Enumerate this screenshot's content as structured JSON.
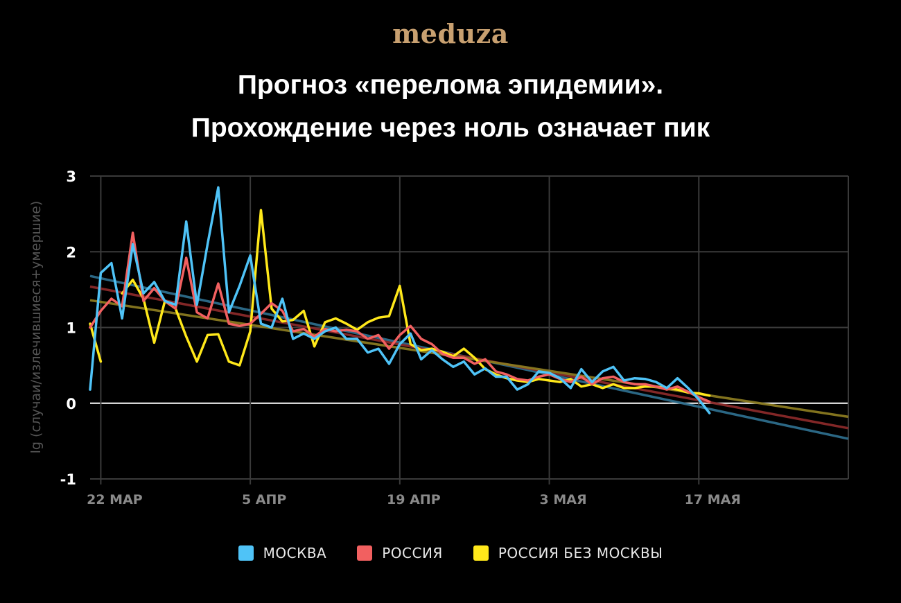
{
  "logo": "meduza",
  "title_lines": [
    "Прогноз «перелома эпидемии».",
    "Прохождение через ноль означает пик"
  ],
  "chart_data": {
    "type": "line",
    "title": "Прогноз «перелома эпидемии». Прохождение через ноль означает пик",
    "ylabel": "lg (случаи/излечившиеся+умершие)",
    "xlabel": "",
    "ylim": [
      -1,
      3
    ],
    "xlim": [
      "2020-03-21",
      "2020-05-31"
    ],
    "yticks": [
      3,
      2,
      1,
      0,
      -1
    ],
    "xticks": [
      {
        "date": "2020-03-22",
        "label": "22 МАР"
      },
      {
        "date": "2020-04-05",
        "label": "5 АПР"
      },
      {
        "date": "2020-04-19",
        "label": "19 АПР"
      },
      {
        "date": "2020-05-03",
        "label": "3 МАЯ"
      },
      {
        "date": "2020-05-17",
        "label": "17 МАЯ"
      }
    ],
    "grid": true,
    "legend_position": "bottom",
    "series": [
      {
        "name": "МОСКВА",
        "color": "#4fc3f7",
        "points": [
          [
            "2020-03-21",
            0.18
          ],
          [
            "2020-03-22",
            1.72
          ],
          [
            "2020-03-23",
            1.85
          ],
          [
            "2020-03-24",
            1.12
          ],
          [
            "2020-03-25",
            2.1
          ],
          [
            "2020-03-26",
            1.45
          ],
          [
            "2020-03-27",
            1.6
          ],
          [
            "2020-03-28",
            1.35
          ],
          [
            "2020-03-29",
            1.3
          ],
          [
            "2020-03-30",
            2.4
          ],
          [
            "2020-03-31",
            1.3
          ],
          [
            "2020-04-01",
            2.1
          ],
          [
            "2020-04-02",
            2.85
          ],
          [
            "2020-04-03",
            1.2
          ],
          [
            "2020-04-04",
            1.55
          ],
          [
            "2020-04-05",
            1.95
          ],
          [
            "2020-04-06",
            1.05
          ],
          [
            "2020-04-07",
            1.0
          ],
          [
            "2020-04-08",
            1.38
          ],
          [
            "2020-04-09",
            0.85
          ],
          [
            "2020-04-10",
            0.92
          ],
          [
            "2020-04-11",
            0.85
          ],
          [
            "2020-04-12",
            0.95
          ],
          [
            "2020-04-13",
            1.0
          ],
          [
            "2020-04-14",
            0.85
          ],
          [
            "2020-04-15",
            0.85
          ],
          [
            "2020-04-16",
            0.67
          ],
          [
            "2020-04-17",
            0.72
          ],
          [
            "2020-04-18",
            0.52
          ],
          [
            "2020-04-19",
            0.78
          ],
          [
            "2020-04-20",
            0.92
          ],
          [
            "2020-04-21",
            0.58
          ],
          [
            "2020-04-22",
            0.7
          ],
          [
            "2020-04-23",
            0.58
          ],
          [
            "2020-04-24",
            0.48
          ],
          [
            "2020-04-25",
            0.55
          ],
          [
            "2020-04-26",
            0.38
          ],
          [
            "2020-04-27",
            0.46
          ],
          [
            "2020-04-28",
            0.35
          ],
          [
            "2020-04-29",
            0.35
          ],
          [
            "2020-04-30",
            0.18
          ],
          [
            "2020-05-01",
            0.25
          ],
          [
            "2020-05-02",
            0.42
          ],
          [
            "2020-05-03",
            0.4
          ],
          [
            "2020-05-04",
            0.33
          ],
          [
            "2020-05-05",
            0.2
          ],
          [
            "2020-05-06",
            0.45
          ],
          [
            "2020-05-07",
            0.28
          ],
          [
            "2020-05-08",
            0.42
          ],
          [
            "2020-05-09",
            0.48
          ],
          [
            "2020-05-10",
            0.3
          ],
          [
            "2020-05-11",
            0.33
          ],
          [
            "2020-05-12",
            0.32
          ],
          [
            "2020-05-13",
            0.28
          ],
          [
            "2020-05-14",
            0.2
          ],
          [
            "2020-05-15",
            0.33
          ],
          [
            "2020-05-16",
            0.2
          ],
          [
            "2020-05-17",
            0.05
          ],
          [
            "2020-05-18",
            -0.13
          ]
        ],
        "trend": [
          [
            "2020-03-21",
            1.68
          ],
          [
            "2020-05-31",
            -0.47
          ]
        ]
      },
      {
        "name": "РОССИЯ",
        "color": "#f26060",
        "points": [
          [
            "2020-03-21",
            1.0
          ],
          [
            "2020-03-22",
            1.22
          ],
          [
            "2020-03-23",
            1.38
          ],
          [
            "2020-03-24",
            1.28
          ],
          [
            "2020-03-25",
            2.25
          ],
          [
            "2020-03-26",
            1.35
          ],
          [
            "2020-03-27",
            1.52
          ],
          [
            "2020-03-28",
            1.35
          ],
          [
            "2020-03-29",
            1.25
          ],
          [
            "2020-03-30",
            1.92
          ],
          [
            "2020-03-31",
            1.2
          ],
          [
            "2020-04-01",
            1.12
          ],
          [
            "2020-04-02",
            1.58
          ],
          [
            "2020-04-03",
            1.05
          ],
          [
            "2020-04-04",
            1.02
          ],
          [
            "2020-04-05",
            1.05
          ],
          [
            "2020-04-06",
            1.18
          ],
          [
            "2020-04-07",
            1.32
          ],
          [
            "2020-04-08",
            1.22
          ],
          [
            "2020-04-09",
            0.95
          ],
          [
            "2020-04-10",
            0.98
          ],
          [
            "2020-04-11",
            0.88
          ],
          [
            "2020-04-12",
            0.98
          ],
          [
            "2020-04-13",
            0.95
          ],
          [
            "2020-04-14",
            0.97
          ],
          [
            "2020-04-15",
            0.95
          ],
          [
            "2020-04-16",
            0.85
          ],
          [
            "2020-04-17",
            0.9
          ],
          [
            "2020-04-18",
            0.72
          ],
          [
            "2020-04-19",
            0.9
          ],
          [
            "2020-04-20",
            1.02
          ],
          [
            "2020-04-21",
            0.85
          ],
          [
            "2020-04-22",
            0.78
          ],
          [
            "2020-04-23",
            0.65
          ],
          [
            "2020-04-24",
            0.6
          ],
          [
            "2020-04-25",
            0.6
          ],
          [
            "2020-04-26",
            0.52
          ],
          [
            "2020-04-27",
            0.58
          ],
          [
            "2020-04-28",
            0.42
          ],
          [
            "2020-04-29",
            0.38
          ],
          [
            "2020-04-30",
            0.32
          ],
          [
            "2020-05-01",
            0.3
          ],
          [
            "2020-05-02",
            0.35
          ],
          [
            "2020-05-03",
            0.38
          ],
          [
            "2020-05-04",
            0.32
          ],
          [
            "2020-05-05",
            0.28
          ],
          [
            "2020-05-06",
            0.35
          ],
          [
            "2020-05-07",
            0.25
          ],
          [
            "2020-05-08",
            0.33
          ],
          [
            "2020-05-09",
            0.35
          ],
          [
            "2020-05-10",
            0.28
          ],
          [
            "2020-05-11",
            0.25
          ],
          [
            "2020-05-12",
            0.25
          ],
          [
            "2020-05-13",
            0.22
          ],
          [
            "2020-05-14",
            0.18
          ],
          [
            "2020-05-15",
            0.22
          ],
          [
            "2020-05-16",
            0.15
          ],
          [
            "2020-05-17",
            0.08
          ],
          [
            "2020-05-18",
            0.02
          ]
        ],
        "trend": [
          [
            "2020-03-21",
            1.54
          ],
          [
            "2020-05-31",
            -0.33
          ]
        ]
      },
      {
        "name": "РОССИЯ БЕЗ МОСКВЫ",
        "color": "#ffe81a",
        "points": [
          [
            "2020-03-21",
            1.05
          ],
          [
            "2020-03-22",
            0.55
          ],
          [
            "2020-03-23",
            null
          ],
          [
            "2020-03-24",
            1.45
          ],
          [
            "2020-03-25",
            1.63
          ],
          [
            "2020-03-26",
            1.38
          ],
          [
            "2020-03-27",
            0.8
          ],
          [
            "2020-03-28",
            1.35
          ],
          [
            "2020-03-29",
            1.25
          ],
          [
            "2020-03-30",
            0.88
          ],
          [
            "2020-03-31",
            0.55
          ],
          [
            "2020-04-01",
            0.9
          ],
          [
            "2020-04-02",
            0.91
          ],
          [
            "2020-04-03",
            0.55
          ],
          [
            "2020-04-04",
            0.5
          ],
          [
            "2020-04-05",
            0.95
          ],
          [
            "2020-04-06",
            2.55
          ],
          [
            "2020-04-07",
            1.25
          ],
          [
            "2020-04-08",
            1.08
          ],
          [
            "2020-04-09",
            1.1
          ],
          [
            "2020-04-10",
            1.22
          ],
          [
            "2020-04-11",
            0.75
          ],
          [
            "2020-04-12",
            1.07
          ],
          [
            "2020-04-13",
            1.12
          ],
          [
            "2020-04-14",
            1.05
          ],
          [
            "2020-04-15",
            0.97
          ],
          [
            "2020-04-16",
            1.07
          ],
          [
            "2020-04-17",
            1.13
          ],
          [
            "2020-04-18",
            1.15
          ],
          [
            "2020-04-19",
            1.55
          ],
          [
            "2020-04-20",
            0.78
          ],
          [
            "2020-04-21",
            0.7
          ],
          [
            "2020-04-22",
            0.72
          ],
          [
            "2020-04-23",
            0.68
          ],
          [
            "2020-04-24",
            0.62
          ],
          [
            "2020-04-25",
            0.72
          ],
          [
            "2020-04-26",
            0.6
          ],
          [
            "2020-04-27",
            0.45
          ],
          [
            "2020-04-28",
            0.38
          ],
          [
            "2020-04-29",
            0.33
          ],
          [
            "2020-04-30",
            0.3
          ],
          [
            "2020-05-01",
            0.28
          ],
          [
            "2020-05-02",
            0.32
          ],
          [
            "2020-05-03",
            0.3
          ],
          [
            "2020-05-04",
            0.28
          ],
          [
            "2020-05-05",
            0.32
          ],
          [
            "2020-05-06",
            0.22
          ],
          [
            "2020-05-07",
            0.25
          ],
          [
            "2020-05-08",
            0.2
          ],
          [
            "2020-05-09",
            0.25
          ],
          [
            "2020-05-10",
            0.2
          ],
          [
            "2020-05-11",
            0.2
          ],
          [
            "2020-05-12",
            0.22
          ],
          [
            "2020-05-13",
            0.22
          ],
          [
            "2020-05-14",
            0.2
          ],
          [
            "2020-05-15",
            0.18
          ],
          [
            "2020-05-16",
            0.14
          ],
          [
            "2020-05-17",
            0.13
          ],
          [
            "2020-05-18",
            0.1
          ]
        ],
        "trend": [
          [
            "2020-03-21",
            1.36
          ],
          [
            "2020-05-31",
            -0.18
          ]
        ]
      }
    ]
  }
}
